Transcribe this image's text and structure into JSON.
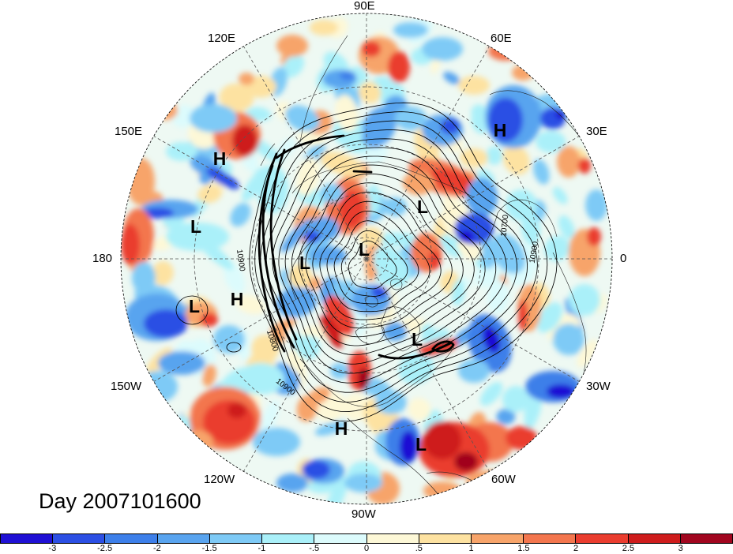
{
  "title": "Day 2007101600",
  "longitude_labels": {
    "lon_90e": "90E",
    "lon_60e": "60E",
    "lon_120e": "120E",
    "lon_150e": "150E",
    "lon_30e": "30E",
    "lon_180": "180",
    "lon_0": "0",
    "lon_150w": "150W",
    "lon_30w": "30W",
    "lon_120w": "120W",
    "lon_60w": "60W",
    "lon_90w": "90W"
  },
  "pressure_centers": [
    "H",
    "H",
    "L",
    "L",
    "L",
    "L",
    "H",
    "L",
    "L",
    "H",
    "L"
  ],
  "contour_labels": [
    "10900",
    "10800",
    "10900",
    "10700",
    "10900"
  ],
  "colorbar": {
    "ticks": [
      "-3",
      "-2.5",
      "-2",
      "-1.5",
      "-1",
      "-.5",
      "0",
      ".5",
      "1",
      "1.5",
      "2",
      "2.5",
      "3"
    ],
    "colors": [
      "#1f10d4",
      "#2c4fe4",
      "#3d7fe9",
      "#59a4ef",
      "#7ecaf6",
      "#aaf0f9",
      "#dcfbfc",
      "#fdf8d7",
      "#fde2a1",
      "#f7a46a",
      "#f3764e",
      "#ea3d2f",
      "#ce1c1c",
      "#a1061f"
    ]
  }
}
